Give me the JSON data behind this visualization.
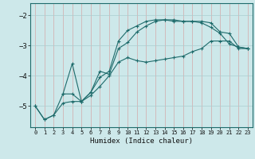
{
  "xlabel": "Humidex (Indice chaleur)",
  "bg_color": "#cde8ea",
  "grid_color": "#aacdd0",
  "line_color": "#1e6b6b",
  "xlim": [
    -0.5,
    23.5
  ],
  "ylim": [
    -5.7,
    -1.6
  ],
  "yticks": [
    -5,
    -4,
    -3,
    -2
  ],
  "xticks": [
    0,
    1,
    2,
    3,
    4,
    5,
    6,
    7,
    8,
    9,
    10,
    11,
    12,
    13,
    14,
    15,
    16,
    17,
    18,
    19,
    20,
    21,
    22,
    23
  ],
  "line1_x": [
    0,
    1,
    2,
    3,
    4,
    5,
    6,
    7,
    8,
    9,
    10,
    11,
    12,
    13,
    14,
    15,
    16,
    17,
    18,
    19,
    20,
    21,
    22,
    23
  ],
  "line1_y": [
    -5.0,
    -5.45,
    -5.3,
    -4.9,
    -4.85,
    -4.85,
    -4.65,
    -4.35,
    -4.0,
    -3.55,
    -3.4,
    -3.5,
    -3.55,
    -3.5,
    -3.45,
    -3.4,
    -3.35,
    -3.2,
    -3.1,
    -2.85,
    -2.85,
    -2.85,
    -3.1,
    -3.1
  ],
  "line2_x": [
    0,
    1,
    2,
    3,
    4,
    5,
    6,
    7,
    8,
    9,
    10,
    11,
    12,
    13,
    14,
    15,
    16,
    17,
    18,
    19,
    20,
    21,
    22,
    23
  ],
  "line2_y": [
    -5.0,
    -5.45,
    -5.3,
    -4.6,
    -4.6,
    -4.85,
    -4.55,
    -4.05,
    -3.85,
    -2.85,
    -2.5,
    -2.35,
    -2.2,
    -2.15,
    -2.15,
    -2.2,
    -2.2,
    -2.2,
    -2.25,
    -2.4,
    -2.6,
    -2.95,
    -3.05,
    -3.1
  ],
  "line3_x": [
    3,
    4,
    5,
    6,
    7,
    8,
    9,
    10,
    11,
    12,
    13,
    14,
    15,
    16,
    17,
    18,
    19,
    20,
    21,
    22,
    23
  ],
  "line3_y": [
    -4.6,
    -3.6,
    -4.85,
    -4.55,
    -3.85,
    -3.95,
    -3.1,
    -2.9,
    -2.55,
    -2.35,
    -2.2,
    -2.15,
    -2.15,
    -2.2,
    -2.2,
    -2.2,
    -2.25,
    -2.55,
    -2.6,
    -3.05,
    -3.1
  ]
}
